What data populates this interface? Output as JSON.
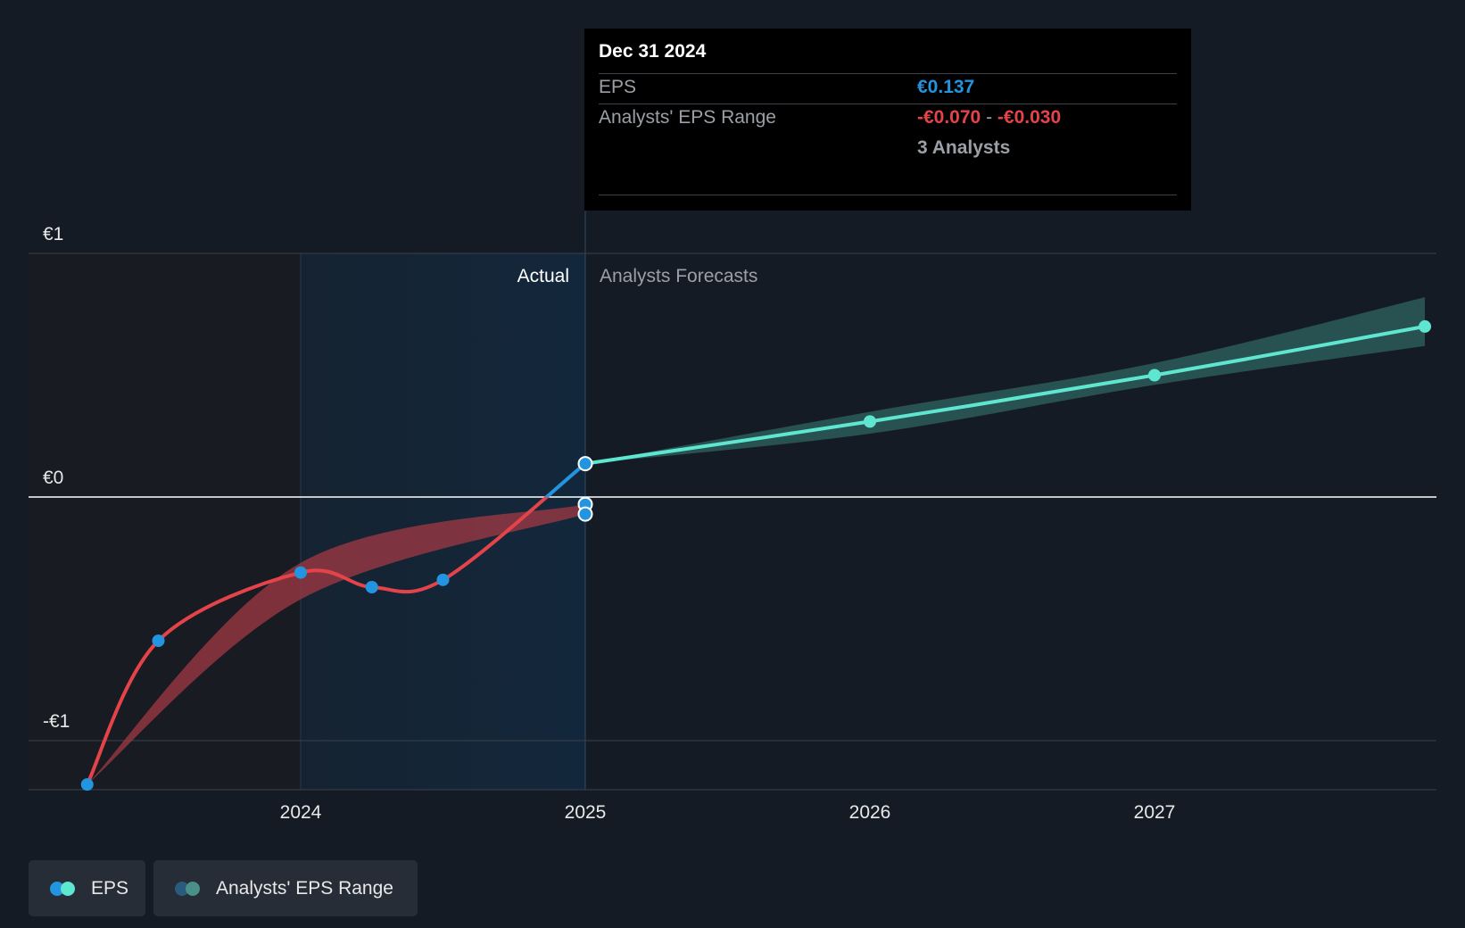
{
  "tooltip": {
    "date": "Dec 31 2024",
    "eps_label": "EPS",
    "eps_value": "€0.137",
    "range_label": "Analysts' EPS Range",
    "range_low": "-€0.070",
    "range_sep": "-",
    "range_high": "-€0.030",
    "analysts": "3 Analysts"
  },
  "legend": {
    "eps": "EPS",
    "range": "Analysts' EPS Range"
  },
  "colors": {
    "background": "#151b24",
    "eps_actual_negative": "#e5434a",
    "eps_actual_positive": "#2394df",
    "eps_forecast": "#5ee6d0",
    "range_actual": "#a13a44",
    "range_forecast": "#2b5a5a"
  },
  "chart_data": {
    "type": "line",
    "y_tick_labels": [
      "€1",
      "€0",
      "-€1"
    ],
    "y_ticks": [
      1,
      0,
      -1
    ],
    "ylim": [
      -1.2,
      1
    ],
    "x_tick_labels": [
      "2024",
      "2025",
      "2026",
      "2027"
    ],
    "x_ticks": [
      2024,
      2025,
      2026,
      2027
    ],
    "xlim": [
      2023.04,
      2027.95
    ],
    "section_labels": {
      "actual": "Actual",
      "forecast": "Analysts Forecasts"
    },
    "series": [
      {
        "name": "EPS",
        "points": [
          {
            "x": 2023.25,
            "y": -1.18
          },
          {
            "x": 2023.5,
            "y": -0.59
          },
          {
            "x": 2024.0,
            "y": -0.31
          },
          {
            "x": 2024.25,
            "y": -0.37
          },
          {
            "x": 2024.5,
            "y": -0.34
          },
          {
            "x": 2025.0,
            "y": 0.137
          }
        ]
      },
      {
        "name": "EPS",
        "points": [
          {
            "x": 2025.0,
            "y": 0.137
          },
          {
            "x": 2026.0,
            "y": 0.31
          },
          {
            "x": 2027.0,
            "y": 0.5
          },
          {
            "x": 2027.95,
            "y": 0.7
          }
        ]
      },
      {
        "name": "Analysts' EPS Range",
        "low": [
          {
            "x": 2023.25,
            "y": -1.18
          },
          {
            "x": 2024.0,
            "y": -0.42
          },
          {
            "x": 2025.0,
            "y": -0.07
          }
        ],
        "high": [
          {
            "x": 2023.25,
            "y": -1.18
          },
          {
            "x": 2024.0,
            "y": -0.27
          },
          {
            "x": 2025.0,
            "y": -0.03
          }
        ]
      },
      {
        "name": "Analysts' EPS Range",
        "low": [
          {
            "x": 2025.0,
            "y": 0.137
          },
          {
            "x": 2026.0,
            "y": 0.26
          },
          {
            "x": 2027.0,
            "y": 0.46
          },
          {
            "x": 2027.95,
            "y": 0.62
          }
        ],
        "high": [
          {
            "x": 2025.0,
            "y": 0.137
          },
          {
            "x": 2026.0,
            "y": 0.35
          },
          {
            "x": 2027.0,
            "y": 0.55
          },
          {
            "x": 2027.95,
            "y": 0.82
          }
        ]
      }
    ],
    "highlight_x": 2025.0,
    "highlight_markers": [
      0.137,
      -0.03,
      -0.07
    ]
  }
}
